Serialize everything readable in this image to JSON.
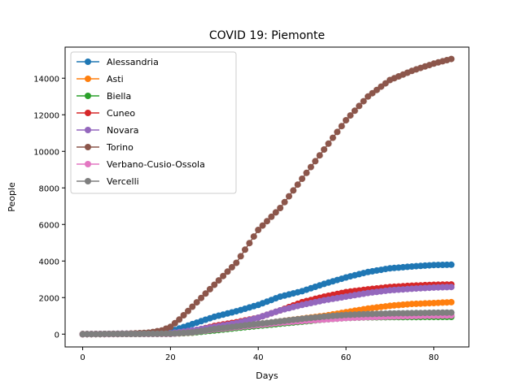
{
  "chart_data": {
    "type": "line",
    "title": "COVID 19: Piemonte",
    "xlabel": "Days",
    "ylabel": "People",
    "xlim": [
      -4,
      88
    ],
    "ylim": [
      -700,
      15700
    ],
    "xticks": [
      0,
      20,
      40,
      60,
      80
    ],
    "yticks": [
      0,
      2000,
      4000,
      6000,
      8000,
      10000,
      12000,
      14000
    ],
    "legend_position": "top-left",
    "grid": false,
    "marker": "circle",
    "series": [
      {
        "name": "Alessandria",
        "color": "#1f77b4",
        "knots": [
          [
            0,
            0
          ],
          [
            15,
            30
          ],
          [
            20,
            150
          ],
          [
            25,
            550
          ],
          [
            30,
            950
          ],
          [
            35,
            1250
          ],
          [
            40,
            1600
          ],
          [
            45,
            2050
          ],
          [
            50,
            2350
          ],
          [
            55,
            2750
          ],
          [
            60,
            3100
          ],
          [
            65,
            3400
          ],
          [
            70,
            3600
          ],
          [
            75,
            3700
          ],
          [
            80,
            3780
          ],
          [
            84,
            3800
          ]
        ]
      },
      {
        "name": "Asti",
        "color": "#ff7f0e",
        "knots": [
          [
            0,
            0
          ],
          [
            20,
            20
          ],
          [
            25,
            80
          ],
          [
            30,
            250
          ],
          [
            35,
            400
          ],
          [
            40,
            550
          ],
          [
            45,
            700
          ],
          [
            50,
            850
          ],
          [
            55,
            1000
          ],
          [
            60,
            1200
          ],
          [
            65,
            1400
          ],
          [
            70,
            1550
          ],
          [
            75,
            1650
          ],
          [
            80,
            1700
          ],
          [
            84,
            1750
          ]
        ]
      },
      {
        "name": "Biella",
        "color": "#2ca02c",
        "knots": [
          [
            0,
            0
          ],
          [
            20,
            20
          ],
          [
            25,
            80
          ],
          [
            30,
            200
          ],
          [
            35,
            330
          ],
          [
            40,
            450
          ],
          [
            45,
            570
          ],
          [
            50,
            680
          ],
          [
            55,
            800
          ],
          [
            60,
            880
          ],
          [
            65,
            920
          ],
          [
            70,
            930
          ],
          [
            75,
            935
          ],
          [
            80,
            940
          ],
          [
            84,
            945
          ]
        ]
      },
      {
        "name": "Cuneo",
        "color": "#d62728",
        "knots": [
          [
            0,
            0
          ],
          [
            20,
            30
          ],
          [
            25,
            150
          ],
          [
            30,
            450
          ],
          [
            35,
            650
          ],
          [
            40,
            900
          ],
          [
            45,
            1300
          ],
          [
            50,
            1750
          ],
          [
            55,
            2050
          ],
          [
            60,
            2300
          ],
          [
            65,
            2450
          ],
          [
            70,
            2580
          ],
          [
            75,
            2650
          ],
          [
            80,
            2700
          ],
          [
            84,
            2720
          ]
        ]
      },
      {
        "name": "Novara",
        "color": "#9467bd",
        "knots": [
          [
            0,
            0
          ],
          [
            20,
            50
          ],
          [
            25,
            200
          ],
          [
            30,
            400
          ],
          [
            35,
            600
          ],
          [
            40,
            900
          ],
          [
            45,
            1300
          ],
          [
            50,
            1600
          ],
          [
            55,
            1850
          ],
          [
            60,
            2050
          ],
          [
            65,
            2250
          ],
          [
            70,
            2400
          ],
          [
            75,
            2480
          ],
          [
            80,
            2550
          ],
          [
            84,
            2580
          ]
        ]
      },
      {
        "name": "Torino",
        "color": "#8c564b",
        "knots": [
          [
            0,
            0
          ],
          [
            10,
            20
          ],
          [
            15,
            80
          ],
          [
            18,
            200
          ],
          [
            20,
            400
          ],
          [
            22,
            800
          ],
          [
            25,
            1500
          ],
          [
            30,
            2700
          ],
          [
            35,
            3900
          ],
          [
            40,
            5700
          ],
          [
            45,
            6900
          ],
          [
            50,
            8500
          ],
          [
            55,
            10100
          ],
          [
            60,
            11700
          ],
          [
            65,
            13000
          ],
          [
            70,
            13900
          ],
          [
            75,
            14400
          ],
          [
            80,
            14800
          ],
          [
            84,
            15050
          ]
        ]
      },
      {
        "name": "Verbano-Cusio-Ossola",
        "color": "#e377c2",
        "knots": [
          [
            0,
            0
          ],
          [
            20,
            10
          ],
          [
            25,
            100
          ],
          [
            30,
            250
          ],
          [
            35,
            380
          ],
          [
            40,
            500
          ],
          [
            45,
            620
          ],
          [
            50,
            720
          ],
          [
            55,
            800
          ],
          [
            60,
            880
          ],
          [
            65,
            930
          ],
          [
            70,
            960
          ],
          [
            75,
            990
          ],
          [
            80,
            1010
          ],
          [
            84,
            1020
          ]
        ]
      },
      {
        "name": "Vercelli",
        "color": "#7f7f7f",
        "knots": [
          [
            0,
            0
          ],
          [
            20,
            20
          ],
          [
            25,
            100
          ],
          [
            30,
            280
          ],
          [
            35,
            420
          ],
          [
            40,
            560
          ],
          [
            45,
            700
          ],
          [
            50,
            840
          ],
          [
            55,
            960
          ],
          [
            60,
            1050
          ],
          [
            65,
            1100
          ],
          [
            70,
            1130
          ],
          [
            75,
            1150
          ],
          [
            80,
            1170
          ],
          [
            84,
            1180
          ]
        ]
      }
    ]
  }
}
